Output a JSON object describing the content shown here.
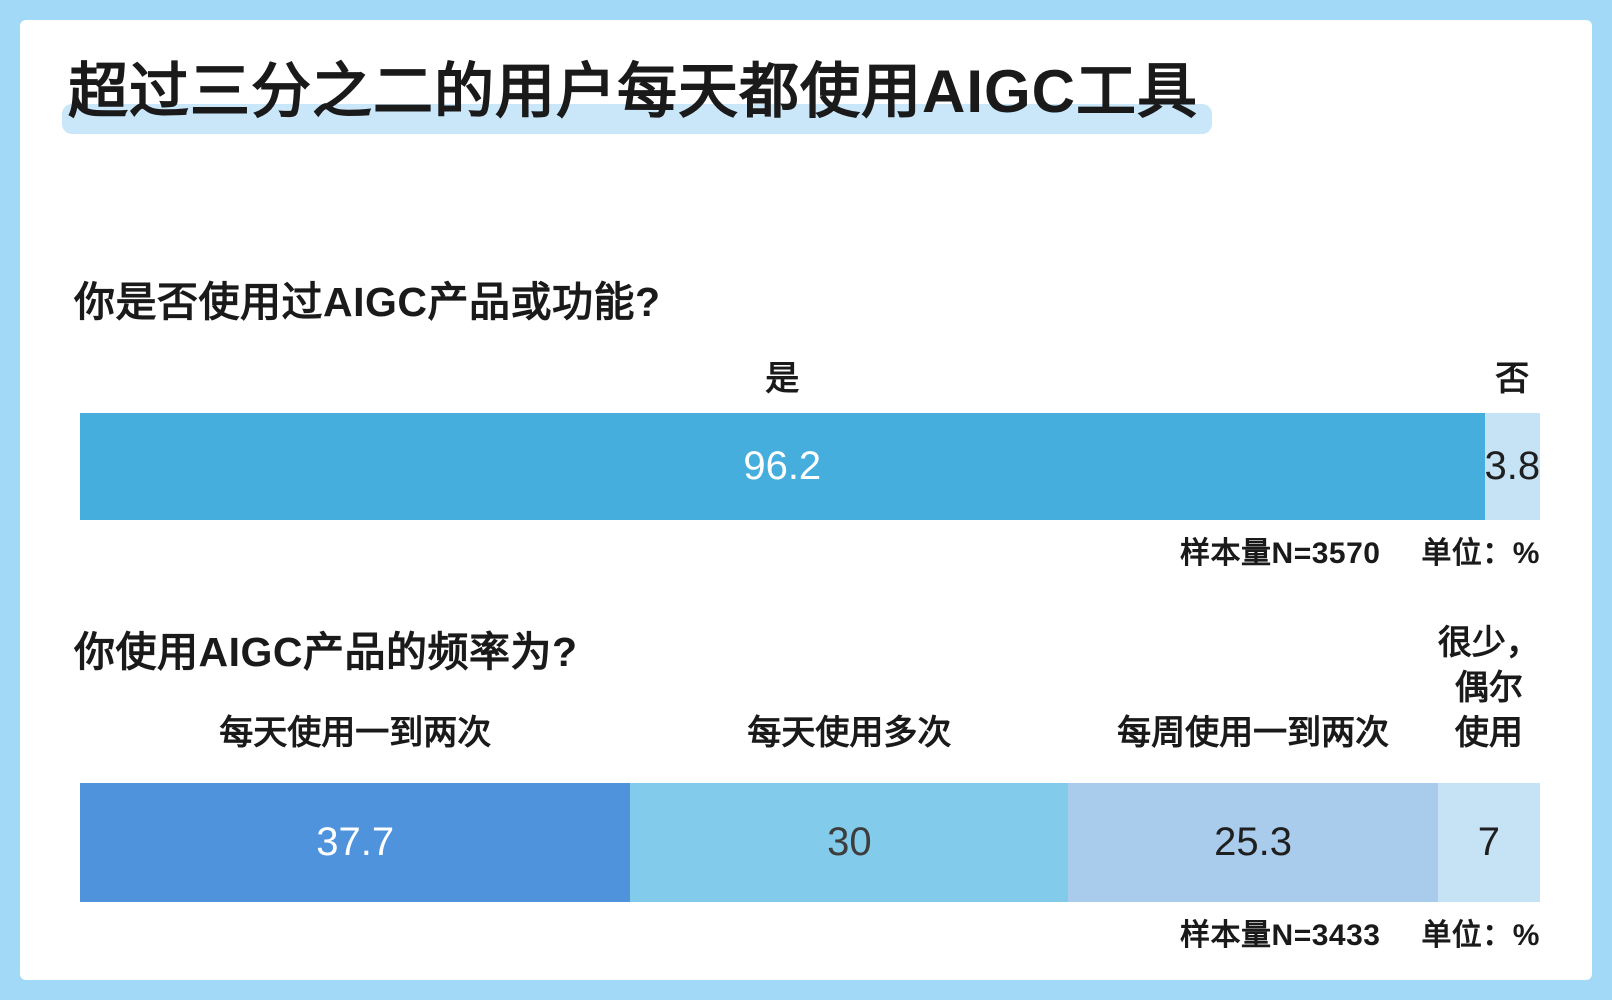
{
  "page": {
    "title": "超过三分之二的用户每天都使用AIGC工具"
  },
  "colors": {
    "frame": "#a2d9f7",
    "background": "#ffffff",
    "title_highlight": "#cae7f9",
    "text": "#1a1a1a"
  },
  "chart_data": [
    {
      "type": "bar",
      "orientation": "horizontal",
      "stacked": true,
      "question": "你是否使用过AIGC产品或功能?",
      "categories": [
        "是",
        "否"
      ],
      "values": [
        96.2,
        3.8
      ],
      "segment_colors": [
        "#45aedd",
        "#c6e3f6"
      ],
      "value_text_colors": [
        "#ffffff",
        "#1f1f1f"
      ],
      "sample_label": "样本量N=3570",
      "unit_label": "单位：%",
      "xlim": [
        0,
        100
      ],
      "grid": false,
      "legend": "labels-above-segments"
    },
    {
      "type": "bar",
      "orientation": "horizontal",
      "stacked": true,
      "question": "你使用AIGC产品的频率为?",
      "categories": [
        "每天使用一到两次",
        "每天使用多次",
        "每周使用一到两次",
        "很少，偶尔使用"
      ],
      "label_lines": [
        [
          "每天使用一到两次"
        ],
        [
          "每天使用多次"
        ],
        [
          "每周使用一到两次"
        ],
        [
          "很少，",
          "偶尔",
          "使用"
        ]
      ],
      "values": [
        37.7,
        30,
        25.3,
        7
      ],
      "segment_colors": [
        "#4e93dc",
        "#82cbea",
        "#a9cbec",
        "#c6e3f6"
      ],
      "value_text_colors": [
        "#ffffff",
        "#3d3d3d",
        "#1f1f1f",
        "#1f1f1f"
      ],
      "sample_label": "样本量N=3433",
      "unit_label": "单位：%",
      "xlim": [
        0,
        100
      ],
      "grid": false,
      "legend": "labels-above-segments"
    }
  ]
}
